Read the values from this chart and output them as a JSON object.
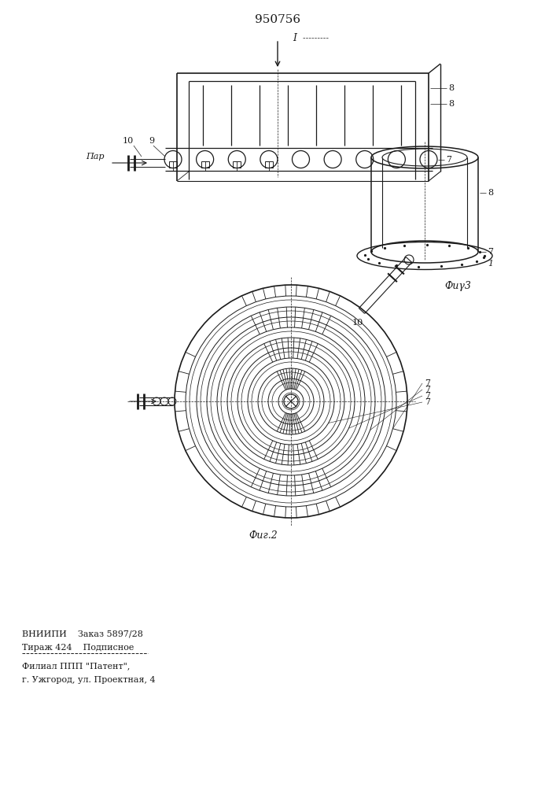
{
  "patent_number": "950756",
  "fig2_label": "Фиг.2",
  "fig3_label": "Фиγ3",
  "par_label": "Пар",
  "label_7": "7",
  "label_8": "8",
  "label_9": "9",
  "label_10": "10",
  "bottom_text_line1": "ВНИИПИ    Заказ 5897/28",
  "bottom_text_line2": "Тираж 424    Подписное",
  "bottom_text_line3": "Филиал ППП \"Патент\",",
  "bottom_text_line4": "г. Ужгород, ул. Проектная, 4",
  "bg_color": "#ffffff",
  "line_color": "#1a1a1a",
  "font_size_title": 11,
  "font_size_label": 8,
  "font_size_small": 8
}
